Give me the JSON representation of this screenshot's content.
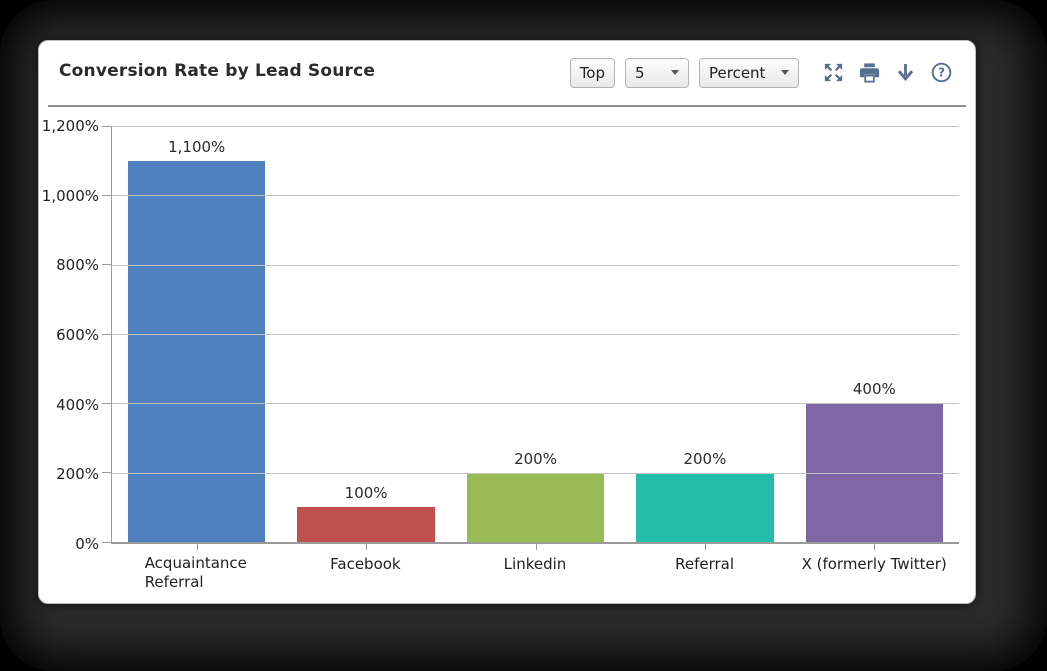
{
  "header": {
    "title": "Conversion Rate by Lead Source",
    "controls": {
      "top_button": "Top",
      "count_select": "5",
      "metric_select": "Percent"
    },
    "icons": [
      "expand-icon",
      "print-icon",
      "download-icon",
      "help-icon"
    ],
    "icon_color": "#566f8f"
  },
  "chart_data": {
    "type": "bar",
    "title": "Conversion Rate by Lead Source",
    "categories": [
      "Acquaintance Referral",
      "Facebook",
      "Linkedin",
      "Referral",
      "X (formerly Twitter)"
    ],
    "category_display": [
      "Acquaintance\nReferral",
      "Facebook",
      "Linkedin",
      "Referral",
      "X (formerly Twitter)"
    ],
    "values": [
      1100,
      100,
      200,
      200,
      400
    ],
    "value_labels": [
      "1,100%",
      "100%",
      "200%",
      "200%",
      "400%"
    ],
    "bar_colors": [
      "#4d80bd",
      "#c0504f",
      "#9aba56",
      "#24bcaa",
      "#7f66a5"
    ],
    "xlabel": "",
    "ylabel": "",
    "ylim": [
      0,
      1200
    ],
    "ytick_step": 200,
    "ytick_labels": [
      "0%",
      "200%",
      "400%",
      "600%",
      "800%",
      "1,000%",
      "1,200%"
    ],
    "grid": true,
    "legend": false,
    "axis_color": "#9a9a9a",
    "grid_color": "#c3c3c3"
  }
}
